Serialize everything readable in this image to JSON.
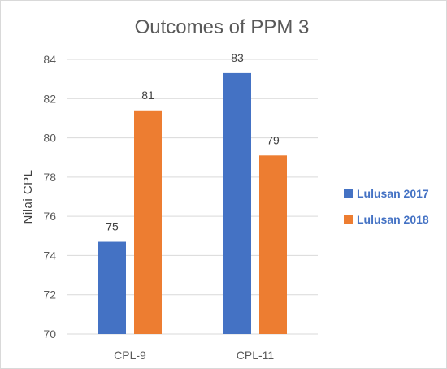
{
  "chart_data": {
    "type": "bar",
    "title": "Outcomes of PPM 3",
    "xlabel": "",
    "ylabel": "Nilai CPL",
    "ylim": [
      70,
      84
    ],
    "yticks": [
      70,
      72,
      74,
      76,
      78,
      80,
      82,
      84
    ],
    "categories": [
      "CPL-9",
      "CPL-11"
    ],
    "series": [
      {
        "name": "Lulusan 2017",
        "values": [
          74.7,
          83.3
        ],
        "labels": [
          "75",
          "83"
        ],
        "color": "#4472c4"
      },
      {
        "name": "Lulusan 2018",
        "values": [
          81.4,
          79.1
        ],
        "labels": [
          "81",
          "79"
        ],
        "color": "#ed7d31"
      }
    ],
    "grid": true,
    "legend": "right"
  }
}
